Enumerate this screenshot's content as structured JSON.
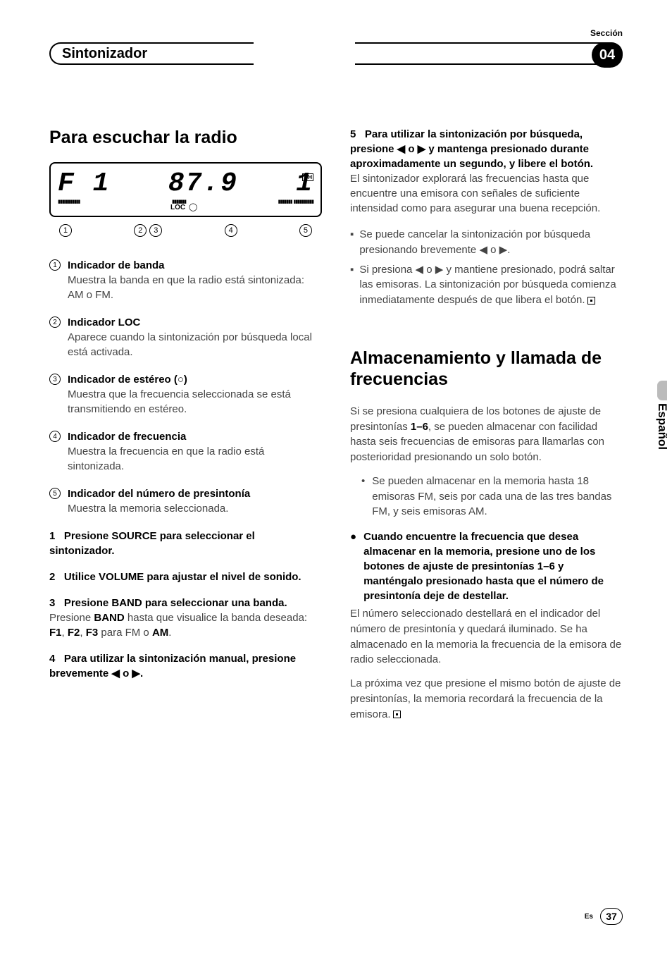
{
  "header": {
    "section_label": "Sección",
    "tab_title": "Sintonizador",
    "section_number": "04"
  },
  "left": {
    "h1": "Para escuchar la radio",
    "display": {
      "seg_left": "F 1",
      "seg_right": "87.9",
      "seg_preset": "1",
      "loc": "LOC",
      "ch": "CH"
    },
    "callouts": [
      "1",
      "2",
      "3",
      "4",
      "5"
    ],
    "defs": [
      {
        "n": "1",
        "title": "Indicador de banda",
        "body": "Muestra la banda en que la radio está sintonizada: AM o FM."
      },
      {
        "n": "2",
        "title": "Indicador LOC",
        "body": "Aparece cuando la sintonización por búsqueda local está activada."
      },
      {
        "n": "3",
        "title": "Indicador de estéreo (○)",
        "body": "Muestra que la frecuencia seleccionada se está transmitiendo en estéreo."
      },
      {
        "n": "4",
        "title": "Indicador de frecuencia",
        "body": "Muestra la frecuencia en que la radio está sintonizada."
      },
      {
        "n": "5",
        "title": "Indicador del número de presintonía",
        "body": "Muestra la memoria seleccionada."
      }
    ],
    "steps": [
      {
        "n": "1",
        "head": "Presione SOURCE para seleccionar el sintonizador.",
        "body": ""
      },
      {
        "n": "2",
        "head": "Utilice VOLUME para ajustar el nivel de sonido.",
        "body": ""
      },
      {
        "n": "3",
        "head": "Presione BAND para seleccionar una banda.",
        "body_html": "Presione <b>BAND</b> hasta que visualice la banda deseada: <b>F1</b>, <b>F2</b>, <b>F3</b> para FM o <b>AM</b>."
      },
      {
        "n": "4",
        "head": "Para utilizar la sintonización manual, presione brevemente ◀ o ▶.",
        "body": ""
      }
    ]
  },
  "right": {
    "step5": {
      "n": "5",
      "head": "Para utilizar la sintonización por búsqueda, presione ◀ o ▶ y mantenga presionado durante aproximadamente un segundo, y libere el botón.",
      "body": "El sintonizador explorará las frecuencias hasta que encuentre una emisora con señales de suficiente intensidad como para asegurar una buena recepción."
    },
    "notes": [
      "Se puede cancelar la sintonización por búsqueda presionando brevemente ◀ o ▶.",
      "Si presiona ◀ o ▶ y mantiene presionado, podrá saltar las emisoras. La sintonización por búsqueda comienza inmediatamente después de que libera el botón."
    ],
    "h1": "Almacenamiento y llamada de frecuencias",
    "intro_html": "Si se presiona cualquiera de los botones de ajuste de presintonías <b>1–6</b>, se pueden almacenar con facilidad hasta seis frecuencias de emisoras para llamarlas con posterioridad presionando un solo botón.",
    "bullet": "Se pueden almacenar en la memoria hasta 18 emisoras FM, seis por cada una de las tres bandas FM, y seis emisoras AM.",
    "action_head": "Cuando encuentre la frecuencia que desea almacenar en la memoria, presione uno de los botones de ajuste de presintonías 1–6 y manténgalo presionado hasta que el número de presintonía deje de destellar.",
    "action_body1": "El número seleccionado destellará en el indicador del número de presintonía y quedará iluminado. Se ha almacenado en la memoria la frecuencia de la emisora de radio seleccionada.",
    "action_body2": "La próxima vez que presione el mismo botón de ajuste de presintonías, la memoria recordará la frecuencia de la emisora."
  },
  "side": {
    "lang": "Español"
  },
  "footer": {
    "lang_short": "Es",
    "page": "37"
  }
}
